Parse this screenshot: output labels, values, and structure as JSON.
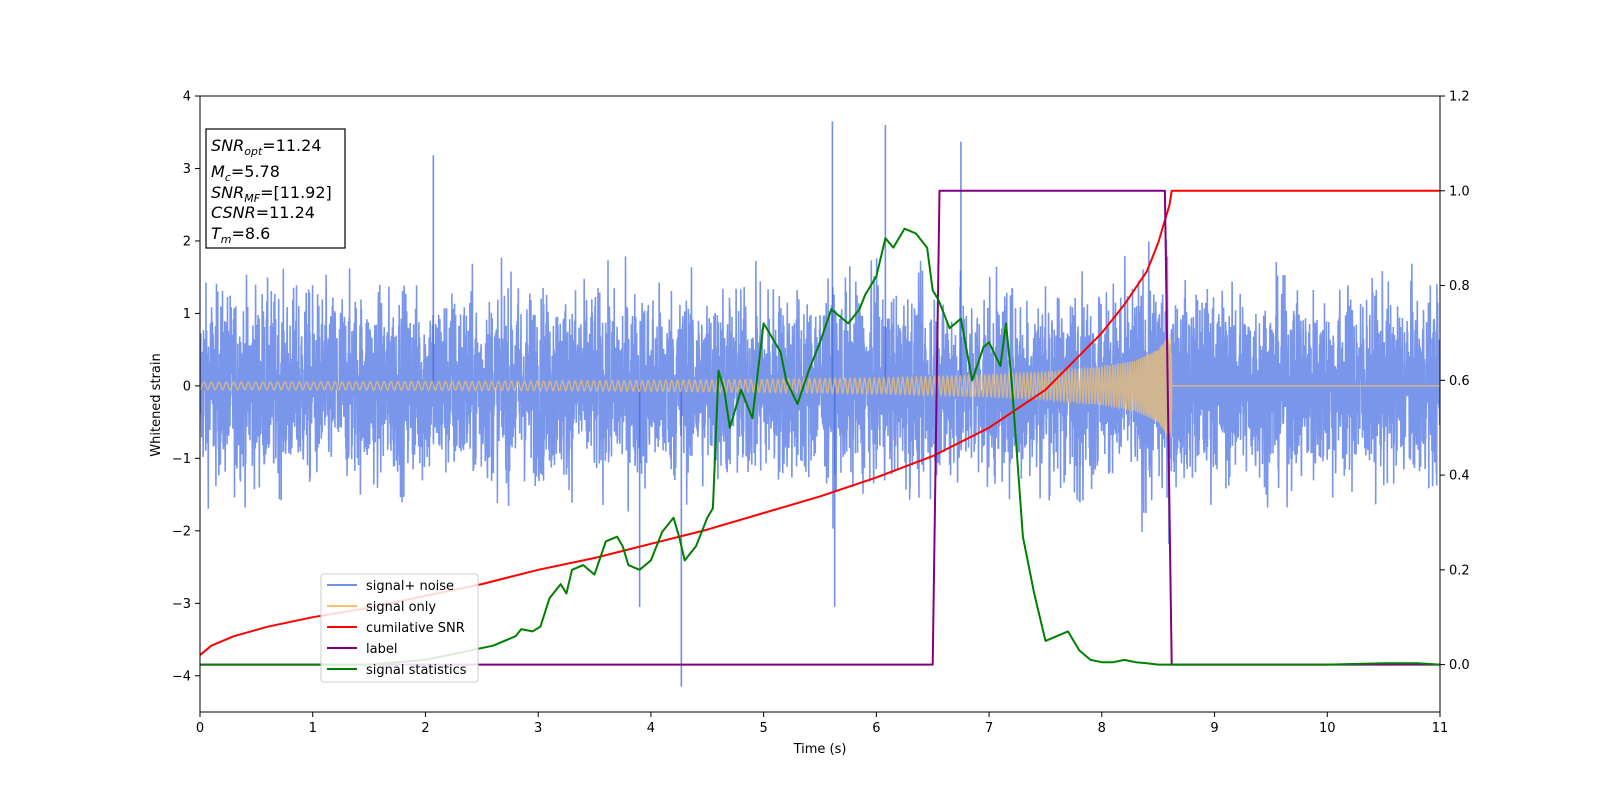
{
  "chart_data": {
    "type": "line",
    "title": "",
    "xlabel": "Time (s)",
    "ylabel": "Whitened strain",
    "ylabel_right": "",
    "xlim": [
      0,
      11
    ],
    "ylim_left": [
      -4.5,
      4.0
    ],
    "ylim_right": [
      -0.1,
      1.2
    ],
    "x_ticks": [
      "0",
      "1",
      "2",
      "3",
      "4",
      "5",
      "6",
      "7",
      "8",
      "9",
      "10",
      "11"
    ],
    "y_left_ticks": [
      "−4",
      "−3",
      "−2",
      "−1",
      "0",
      "1",
      "2",
      "3",
      "4"
    ],
    "y_right_ticks": [
      "0.0",
      "0.2",
      "0.4",
      "0.6",
      "0.8",
      "1.0",
      "1.2"
    ],
    "grid": false,
    "legend_position": "lower-left",
    "info_box": {
      "snr_opt": {
        "main": "SNR",
        "sub": "opt",
        "value": "=11.24"
      },
      "mc": {
        "main": "M",
        "sub": "c",
        "value": "=5.78"
      },
      "snr_mf": {
        "main": "SNR",
        "sub": "MF",
        "value": "=[11.92]"
      },
      "csnr": {
        "main": "CSNR",
        "value": "=11.24"
      },
      "tm": {
        "main": "T",
        "sub": "m",
        "value": "=8.6"
      }
    },
    "series": [
      {
        "name": "signal+ noise",
        "axis": "left",
        "color": "#4169e1",
        "description_values": {
          "noise_band": [
            -1.4,
            1.4
          ],
          "spikes": [
            [
              2.07,
              3.18
            ],
            [
              4.27,
              -4.15
            ],
            [
              5.61,
              3.65
            ],
            [
              6.08,
              3.6
            ],
            [
              6.75,
              3.37
            ],
            [
              5.63,
              -3.05
            ],
            [
              3.9,
              -3.05
            ]
          ]
        }
      },
      {
        "name": "signal only",
        "axis": "left",
        "color": "#f5c26b",
        "envelope": {
          "x": [
            0,
            1,
            2,
            3,
            4,
            5,
            6,
            7,
            7.5,
            8,
            8.3,
            8.5,
            8.6
          ],
          "amplitude": [
            0.05,
            0.055,
            0.06,
            0.065,
            0.075,
            0.09,
            0.11,
            0.15,
            0.19,
            0.26,
            0.35,
            0.5,
            0.72
          ]
        },
        "merger_time": 8.62
      },
      {
        "name": "cumilative SNR",
        "axis": "right",
        "color": "#ff0000",
        "x": [
          0,
          0.1,
          0.3,
          0.6,
          1,
          1.5,
          2,
          2.5,
          3,
          3.5,
          4,
          4.5,
          5,
          5.5,
          6,
          6.5,
          7,
          7.5,
          8,
          8.2,
          8.4,
          8.5,
          8.55,
          8.6,
          8.62,
          9,
          10,
          11
        ],
        "y": [
          0.02,
          0.04,
          0.06,
          0.08,
          0.1,
          0.12,
          0.145,
          0.17,
          0.2,
          0.225,
          0.255,
          0.285,
          0.32,
          0.355,
          0.395,
          0.44,
          0.5,
          0.58,
          0.7,
          0.76,
          0.83,
          0.89,
          0.93,
          0.97,
          1.0,
          1.0,
          1.0,
          1.0
        ]
      },
      {
        "name": "label",
        "axis": "right",
        "color": "#800080",
        "x": [
          0,
          6.5,
          6.56,
          8.56,
          8.62,
          11
        ],
        "y": [
          0.0,
          0.0,
          1.0,
          1.0,
          0.0,
          0.0
        ]
      },
      {
        "name": "signal statistics",
        "axis": "right",
        "color": "#008000",
        "x": [
          0,
          0.5,
          1,
          1.5,
          2,
          2.2,
          2.4,
          2.6,
          2.8,
          2.85,
          2.95,
          3.02,
          3.1,
          3.2,
          3.25,
          3.3,
          3.4,
          3.5,
          3.6,
          3.7,
          3.75,
          3.8,
          3.9,
          4.0,
          4.1,
          4.2,
          4.25,
          4.3,
          4.4,
          4.5,
          4.55,
          4.6,
          4.65,
          4.7,
          4.8,
          4.9,
          5.0,
          5.05,
          5.1,
          5.15,
          5.2,
          5.3,
          5.4,
          5.5,
          5.6,
          5.65,
          5.75,
          5.85,
          5.9,
          6.0,
          6.08,
          6.15,
          6.25,
          6.35,
          6.45,
          6.5,
          6.55,
          6.65,
          6.75,
          6.85,
          6.95,
          7.0,
          7.1,
          7.15,
          7.2,
          7.3,
          7.4,
          7.5,
          7.6,
          7.7,
          7.8,
          7.9,
          8.0,
          8.1,
          8.2,
          8.3,
          8.4,
          8.5,
          8.6,
          9,
          10,
          10.5,
          10.8,
          11
        ],
        "y": [
          0.0,
          0.0,
          0.0,
          0.0,
          0.01,
          0.02,
          0.03,
          0.04,
          0.06,
          0.075,
          0.07,
          0.08,
          0.14,
          0.17,
          0.15,
          0.2,
          0.21,
          0.19,
          0.26,
          0.27,
          0.25,
          0.21,
          0.2,
          0.22,
          0.28,
          0.31,
          0.27,
          0.22,
          0.25,
          0.31,
          0.33,
          0.62,
          0.58,
          0.5,
          0.58,
          0.52,
          0.72,
          0.7,
          0.68,
          0.66,
          0.6,
          0.55,
          0.62,
          0.68,
          0.75,
          0.74,
          0.72,
          0.75,
          0.78,
          0.82,
          0.9,
          0.88,
          0.92,
          0.91,
          0.88,
          0.79,
          0.77,
          0.71,
          0.73,
          0.6,
          0.67,
          0.68,
          0.63,
          0.72,
          0.6,
          0.27,
          0.15,
          0.05,
          0.06,
          0.07,
          0.03,
          0.01,
          0.005,
          0.005,
          0.01,
          0.005,
          0.003,
          0.0,
          0.0,
          0.0,
          0.0,
          0.003,
          0.003,
          0.0
        ]
      }
    ]
  }
}
